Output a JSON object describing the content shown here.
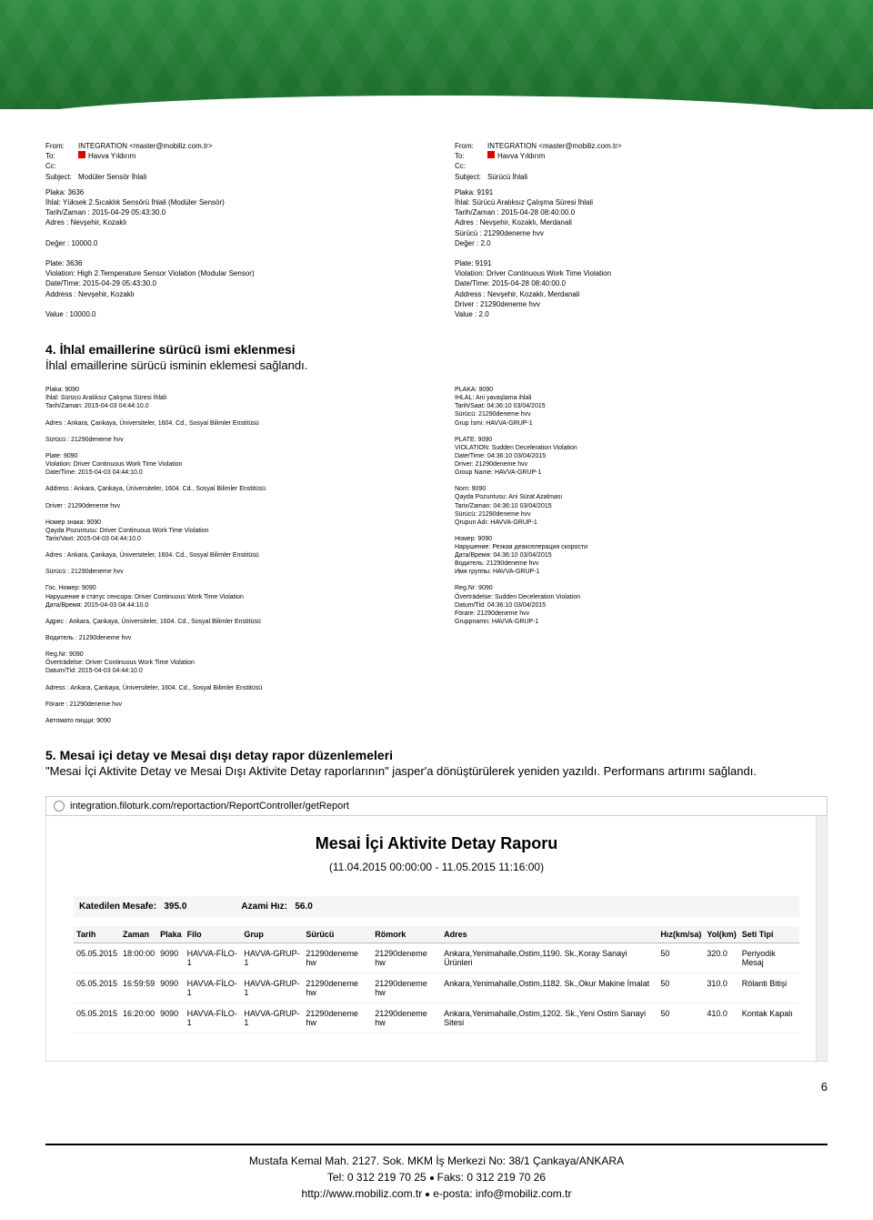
{
  "email1": {
    "from": "INTEGRATION <master@mobiliz.com.tr>",
    "to": "Havva Yıldırım",
    "cc": "",
    "subject": "Modüler Sensör İhlali",
    "body": [
      "Plaka: 3636",
      "İhlal: Yüksek 2.Sıcaklık Sensörü İhlali (Modüler Sensör)",
      "Tarih/Zaman : 2015-04-29 05:43:30.0",
      "Adres : Nevşehir, Kozaklı",
      "",
      "Değer : 10000.0",
      "",
      "Plate: 3636",
      "Violation: High 2.Temperature Sensor Violation (Modular Sensor)",
      "Date/Time: 2015-04-29 05:43:30.0",
      "Address : Nevşehir, Kozaklı",
      "",
      "Value : 10000.0"
    ]
  },
  "email2": {
    "from": "INTEGRATION <master@mobiliz.com.tr>",
    "to": "Havva Yıldırım",
    "cc": "",
    "subject": "Sürücü İhlali",
    "body": [
      "Plaka: 9191",
      "İhlal: Sürücü Aralıksız Çalışma Süresi İhlali",
      "Tarih/Zaman : 2015-04-28 08:40:00.0",
      "Adres : Nevşehir, Kozaklı, Merdanali",
      "Sürücü : 21290deneme hvv",
      "Değer : 2.0",
      "",
      "Plate: 9191",
      "Violation: Driver Continuous Work Time Violation",
      "Date/Time: 2015-04-28 08:40:00.0",
      "Address : Nevşehir, Kozaklı, Merdanali",
      "Driver : 21290deneme hvv",
      "Value : 2.0"
    ]
  },
  "section4": {
    "title": "4. İhlal emaillerine sürücü ismi eklenmesi",
    "body": "İhlal emaillerine sürücü isminin eklemesi sağlandı."
  },
  "multiLeft": [
    "Plaka: 9090",
    "İhlal: Sürücü Aralıksız Çalışma Süresi İhlali",
    "Tarih/Zaman: 2015-04-03 04:44:10.0",
    "",
    "Adres : Ankara, Çankaya, Üniversiteler, 1604. Cd., Sosyal Bilimler Enstitüsü",
    "",
    "Sürücü : 21290deneme hvv",
    "",
    "Plate: 9090",
    "Violation: Driver Continuous Work Time Violation",
    "Date/Time: 2015-04-03 04:44:10.0",
    "",
    "Address : Ankara, Çankaya, Üniversiteler, 1604. Cd., Sosyal Bilimler Enstitüsü",
    "",
    "Driver : 21290deneme hvv",
    "",
    "Номер знака: 9090",
    "Qayda Pozuntusu: Driver Continuous Work Time Violation",
    "Tarix/Vaxt: 2015-04-03 04:44:10.0",
    "",
    "Adres : Ankara, Çankaya, Üniversiteler, 1604. Cd., Sosyal Bilimler Enstitüsü",
    "",
    "Sürücü : 21290deneme hvv",
    "",
    "Гос. Номер: 9090",
    "Нарушение в статус сенсора: Driver Continuous Work Time Violation",
    "Дата/Время: 2015-04-03 04:44:10.0",
    "",
    "Адрес : Ankara, Çankaya, Üniversiteler, 1604. Cd., Sosyal Bilimler Enstitüsü",
    "",
    "Водитель : 21290deneme hvv",
    "",
    "Reg.Nr: 9090",
    "Överträdelse: Driver Continuous Work Time Violation",
    "Datum/Tid: 2015-04-03 04:44:10.0",
    "",
    "Adress : Ankara, Çankaya, Üniversiteler, 1604. Cd., Sosyal Bilimler Enstitüsü",
    "",
    "Förare : 21290deneme hvv",
    "",
    "Автомато пицци: 9090"
  ],
  "multiRight": [
    "PLAKA: 9090",
    "IHLAL: Ani yavaşlama ihlali",
    "Tarih/Saat: 04:36:10 03/04/2015",
    "Sürücü: 21290deneme hvv",
    "Grup İsmi: HAVVA-GRUP-1",
    "",
    "PLATE: 9090",
    "VIOLATION: Sudden Deceleration Violation",
    "Date/Time: 04:36:10 03/04/2015",
    "Driver: 21290deneme hvv",
    "Group Name: HAVVA-GRUP-1",
    "",
    "Nom: 9090",
    "Qayda Pozuntusu: Ani Sürat Azalması",
    "Tarix/Zaman: 04:36:10 03/04/2015",
    "Sürücü: 21290deneme hvv",
    "Qrupun Adı: HAVVA-GRUP-1",
    "",
    "Номер: 9090",
    "Нарушение: Резкая деакселерация скорости",
    "Дата/Время: 04:36:10 03/04/2015",
    "Водитель: 21290deneme hvv",
    "Имя группы: HAVVA-GRUP-1",
    "",
    "Reg.Nr: 9090",
    "Överträdelse: Sudden Deceleration Violation",
    "Datum/Tid: 04:36:10 03/04/2015",
    "Förare: 21290deneme hvv",
    "Gruppnamn: HAVVA-GRUP-1"
  ],
  "section5": {
    "title": "5. Mesai içi detay ve Mesai dışı detay rapor düzenlemeleri",
    "body": "\"Mesai İçi Aktivite Detay ve Mesai Dışı Aktivite Detay raporlarının\" jasper'a dönüştürülerek yeniden yazıldı. Performans  artırımı sağlandı."
  },
  "browser_url": "integration.filoturk.com/reportaction/ReportController/getReport",
  "report": {
    "title": "Mesai İçi Aktivite Detay Raporu",
    "date_range": "(11.04.2015 00:00:00 - 11.05.2015 11:16:00)",
    "stats": {
      "mesafe_label": "Katedilen Mesafe:",
      "mesafe_val": "395.0",
      "hiz_label": "Azami Hız:",
      "hiz_val": "56.0"
    },
    "columns": [
      "Tarih",
      "Zaman",
      "Plaka",
      "Filo",
      "Grup",
      "Sürücü",
      "Römork",
      "Adres",
      "Hız(km/sa)",
      "Yol(km)",
      "Seti Tipi"
    ],
    "rows": [
      [
        "05.05.2015",
        "18:00:00",
        "9090",
        "HAVVA-FİLO-1",
        "HAVVA-GRUP-1",
        "21290deneme hw",
        "21290deneme hw",
        "Ankara,Yenimahalle,Ostim,1190. Sk.,Koray Sanayi Ürünleri",
        "50",
        "320.0",
        "Periyodik Mesaj"
      ],
      [
        "05.05.2015",
        "16:59:59",
        "9090",
        "HAVVA-FİLO-1",
        "HAVVA-GRUP-1",
        "21290deneme hw",
        "21290deneme hw",
        "Ankara,Yenimahalle,Ostim,1182. Sk.,Okur Makine İmalat",
        "50",
        "310.0",
        "Rölanti Bitişi"
      ],
      [
        "05.05.2015",
        "16:20:00",
        "9090",
        "HAVVA-FİLO-1",
        "HAVVA-GRUP-1",
        "21290deneme hw",
        "21290deneme hw",
        "Ankara,Yenimahalle,Ostim,1202. Sk.,Yeni Ostim Sanayi Sitesi",
        "50",
        "410.0",
        "Kontak Kapalı"
      ]
    ]
  },
  "page_num": "6",
  "footer": {
    "line1": "Mustafa Kemal Mah. 2127. Sok. MKM İş Merkezi No: 38/1 Çankaya/ANKARA",
    "line2a": "Tel: 0 312 219 70 25",
    "line2b": "Faks: 0 312 219 70 26",
    "line3a": "http://www.mobiliz.com.tr",
    "line3b": "e-posta: info@mobiliz.com.tr"
  }
}
